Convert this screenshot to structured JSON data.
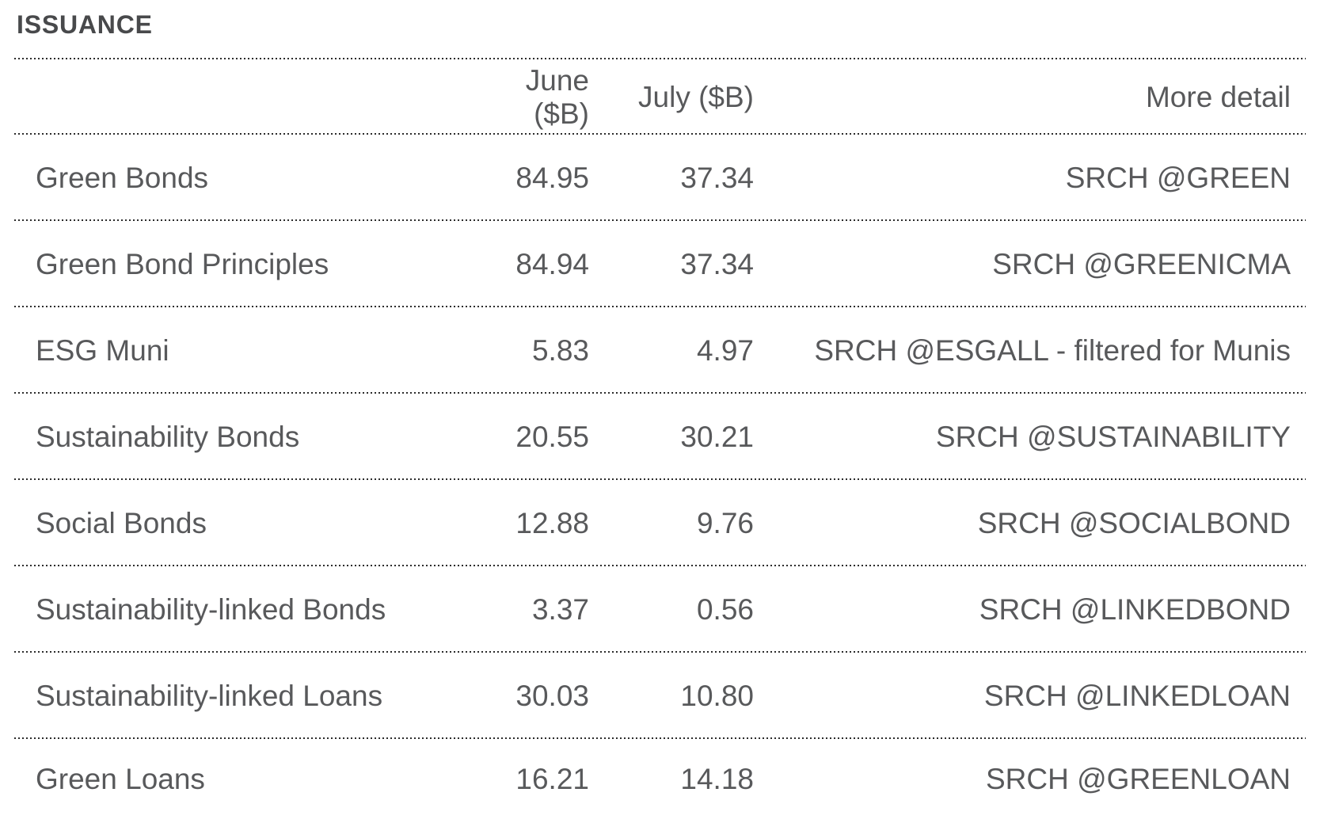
{
  "title": "ISSUANCE",
  "table": {
    "columns": {
      "label": "",
      "june": "June ($B)",
      "july": "July ($B)",
      "detail": "More detail"
    },
    "rows": [
      {
        "label": "Green Bonds",
        "june": "84.95",
        "july": "37.34",
        "detail": "SRCH @GREEN"
      },
      {
        "label": "Green Bond Principles",
        "june": "84.94",
        "july": "37.34",
        "detail": "SRCH @GREENICMA"
      },
      {
        "label": "ESG Muni",
        "june": "5.83",
        "july": "4.97",
        "detail": "SRCH @ESGALL - filtered for Munis"
      },
      {
        "label": "Sustainability Bonds",
        "june": "20.55",
        "july": "30.21",
        "detail": "SRCH @SUSTAINABILITY"
      },
      {
        "label": "Social Bonds",
        "june": "12.88",
        "july": "9.76",
        "detail": "SRCH @SOCIALBOND"
      },
      {
        "label": "Sustainability-linked Bonds",
        "june": "3.37",
        "july": "0.56",
        "detail": "SRCH @LINKEDBOND"
      },
      {
        "label": "Sustainability-linked Loans",
        "june": "30.03",
        "july": "10.80",
        "detail": "SRCH @LINKEDLOAN"
      },
      {
        "label": "Green Loans",
        "june": "16.21",
        "july": "14.18",
        "detail": "SRCH @GREENLOAN"
      }
    ]
  },
  "chart_data": {
    "type": "table",
    "title": "ISSUANCE",
    "columns": [
      "",
      "June ($B)",
      "July ($B)",
      "More detail"
    ],
    "categories": [
      "Green Bonds",
      "Green Bond Principles",
      "ESG Muni",
      "Sustainability Bonds",
      "Social Bonds",
      "Sustainability-linked Bonds",
      "Sustainability-linked Loans",
      "Green Loans"
    ],
    "series": [
      {
        "name": "June ($B)",
        "values": [
          84.95,
          84.94,
          5.83,
          20.55,
          12.88,
          3.37,
          30.03,
          16.21
        ]
      },
      {
        "name": "July ($B)",
        "values": [
          37.34,
          37.34,
          4.97,
          30.21,
          9.76,
          0.56,
          10.8,
          14.18
        ]
      }
    ],
    "more_detail": [
      "SRCH @GREEN",
      "SRCH @GREENICMA",
      "SRCH @ESGALL - filtered for Munis",
      "SRCH @SUSTAINABILITY",
      "SRCH @SOCIALBOND",
      "SRCH @LINKEDBOND",
      "SRCH @LINKEDLOAN",
      "SRCH @GREENLOAN"
    ]
  },
  "colors": {
    "background": "#ffffff",
    "body_text": "#58595b",
    "title_text": "#48494b",
    "rule_dots": "#2c2c2c"
  }
}
